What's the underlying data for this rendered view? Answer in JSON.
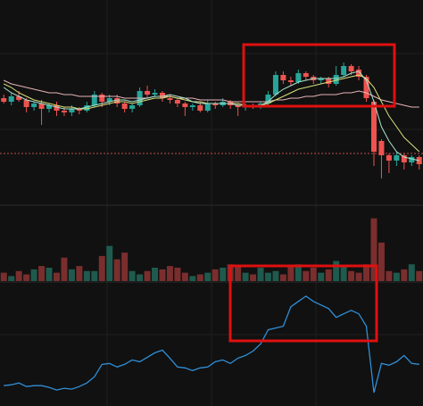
{
  "chart_data": [
    {
      "type": "candlestick",
      "open": [
        60,
        58,
        61,
        59,
        55,
        57,
        54,
        56,
        53,
        52,
        54,
        53,
        56,
        62,
        58,
        60,
        57,
        54,
        56,
        64,
        62,
        63,
        60,
        59,
        57,
        55,
        56,
        53,
        57,
        56,
        58,
        56,
        55,
        56,
        55,
        57,
        62,
        73,
        70,
        69,
        74,
        72,
        70,
        71,
        68,
        73,
        78,
        76,
        72,
        58,
        36,
        28,
        25,
        28,
        24,
        27
      ],
      "close": [
        58,
        61,
        59,
        55,
        57,
        54,
        56,
        53,
        52,
        54,
        53,
        56,
        62,
        58,
        60,
        57,
        54,
        56,
        64,
        62,
        63,
        60,
        59,
        57,
        55,
        56,
        53,
        57,
        56,
        58,
        56,
        55,
        56,
        55,
        57,
        62,
        73,
        70,
        69,
        74,
        72,
        70,
        71,
        68,
        73,
        78,
        75,
        72,
        60,
        30,
        28,
        25,
        28,
        24,
        27,
        23
      ],
      "high": [
        62,
        63,
        64,
        60,
        58,
        59,
        57,
        58,
        55,
        56,
        55,
        58,
        64,
        63,
        62,
        62,
        58,
        57,
        66,
        67,
        65,
        64,
        62,
        60,
        58,
        57,
        58,
        59,
        58,
        60,
        59,
        57,
        57,
        57,
        58,
        64,
        75,
        75,
        72,
        76,
        75,
        73,
        72,
        72,
        78,
        80,
        79,
        78,
        73,
        59,
        37,
        29,
        30,
        29,
        28,
        28
      ],
      "low": [
        57,
        56,
        58,
        52,
        53,
        45,
        52,
        50,
        50,
        50,
        51,
        52,
        55,
        55,
        56,
        55,
        52,
        52,
        55,
        60,
        61,
        58,
        57,
        55,
        50,
        53,
        52,
        52,
        54,
        55,
        54,
        50,
        53,
        54,
        54,
        56,
        61,
        68,
        67,
        68,
        70,
        68,
        68,
        66,
        67,
        72,
        73,
        70,
        58,
        22,
        15,
        18,
        22,
        20,
        22,
        20
      ],
      "up_color": "#26a69a",
      "down_color": "#ef5350",
      "ylim": [
        0,
        115
      ],
      "ref_line": 29,
      "ref_color": "#c0504d",
      "lines": [
        {
          "color": "#e8b4b8",
          "values": [
            70,
            68,
            67,
            66,
            65,
            64,
            63,
            63,
            62,
            62,
            61,
            61,
            61,
            61,
            61,
            61,
            60,
            60,
            60,
            60,
            61,
            61,
            61,
            60,
            60,
            60,
            59,
            59,
            59,
            59,
            58,
            58,
            58,
            58,
            58,
            58,
            59,
            59,
            60,
            60,
            61,
            61,
            62,
            62,
            62,
            63,
            63,
            64,
            63,
            61,
            59,
            58,
            57,
            56,
            55,
            55
          ]
        },
        {
          "color": "#d9e07a",
          "values": [
            68,
            66,
            63,
            61,
            59,
            58,
            57,
            56,
            55,
            55,
            54,
            54,
            55,
            56,
            57,
            58,
            58,
            57,
            58,
            59,
            60,
            60,
            61,
            60,
            59,
            58,
            58,
            57,
            57,
            57,
            57,
            57,
            56,
            56,
            56,
            57,
            59,
            61,
            63,
            65,
            66,
            67,
            68,
            69,
            70,
            71,
            72,
            73,
            71,
            66,
            58,
            50,
            44,
            38,
            34,
            30
          ]
        },
        {
          "color": "#a8e6cf",
          "values": [
            66,
            63,
            61,
            59,
            58,
            57,
            56,
            55,
            54,
            54,
            54,
            55,
            56,
            57,
            58,
            59,
            59,
            58,
            59,
            60,
            61,
            61,
            62,
            61,
            60,
            58,
            57,
            57,
            57,
            57,
            57,
            56,
            56,
            56,
            56,
            58,
            62,
            65,
            67,
            69,
            70,
            71,
            71,
            71,
            71,
            72,
            74,
            75,
            70,
            58,
            44,
            36,
            30,
            27,
            26,
            25
          ]
        }
      ]
    },
    {
      "type": "bar",
      "values": [
        10,
        6,
        12,
        8,
        14,
        18,
        16,
        10,
        28,
        14,
        18,
        12,
        12,
        30,
        42,
        26,
        34,
        12,
        8,
        12,
        16,
        14,
        18,
        16,
        10,
        6,
        8,
        10,
        14,
        16,
        20,
        18,
        10,
        8,
        16,
        10,
        12,
        8,
        18,
        20,
        12,
        16,
        10,
        14,
        24,
        18,
        12,
        10,
        20,
        75,
        46,
        12,
        10,
        14,
        20,
        12
      ],
      "up_color": "#1f5a4e",
      "down_color": "#7a2e2e",
      "ylim": [
        0,
        80
      ]
    },
    {
      "type": "line",
      "values": [
        23,
        24,
        26,
        22,
        23,
        23,
        21,
        18,
        20,
        19,
        22,
        26,
        33,
        47,
        48,
        44,
        47,
        52,
        50,
        55,
        60,
        63,
        54,
        44,
        43,
        40,
        43,
        44,
        50,
        52,
        48,
        54,
        57,
        62,
        70,
        86,
        88,
        90,
        112,
        118,
        124,
        118,
        114,
        110,
        100,
        104,
        108,
        104,
        90,
        15,
        48,
        46,
        50,
        57,
        48,
        47
      ],
      "color": "#2f8fd8",
      "ylim": [
        0,
        140
      ]
    }
  ]
}
